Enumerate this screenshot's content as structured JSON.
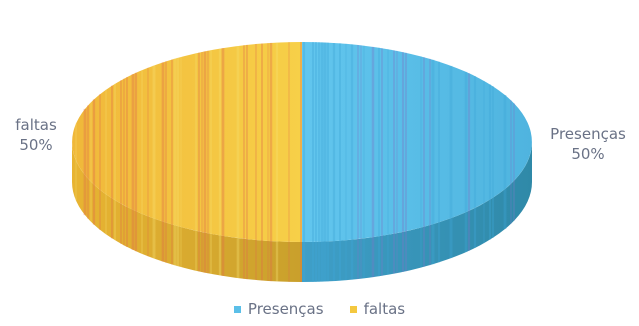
{
  "chart_data": {
    "type": "pie",
    "title": "",
    "style": "3d",
    "slices": [
      {
        "label": "Presenças",
        "value": 50,
        "percent_label": "50%",
        "color": "#5bbfe8"
      },
      {
        "label": "faltas",
        "value": 50,
        "percent_label": "50%",
        "color": "#f4c83f"
      }
    ],
    "legend": {
      "position": "bottom",
      "entries": [
        "Presenças",
        "faltas"
      ]
    }
  }
}
